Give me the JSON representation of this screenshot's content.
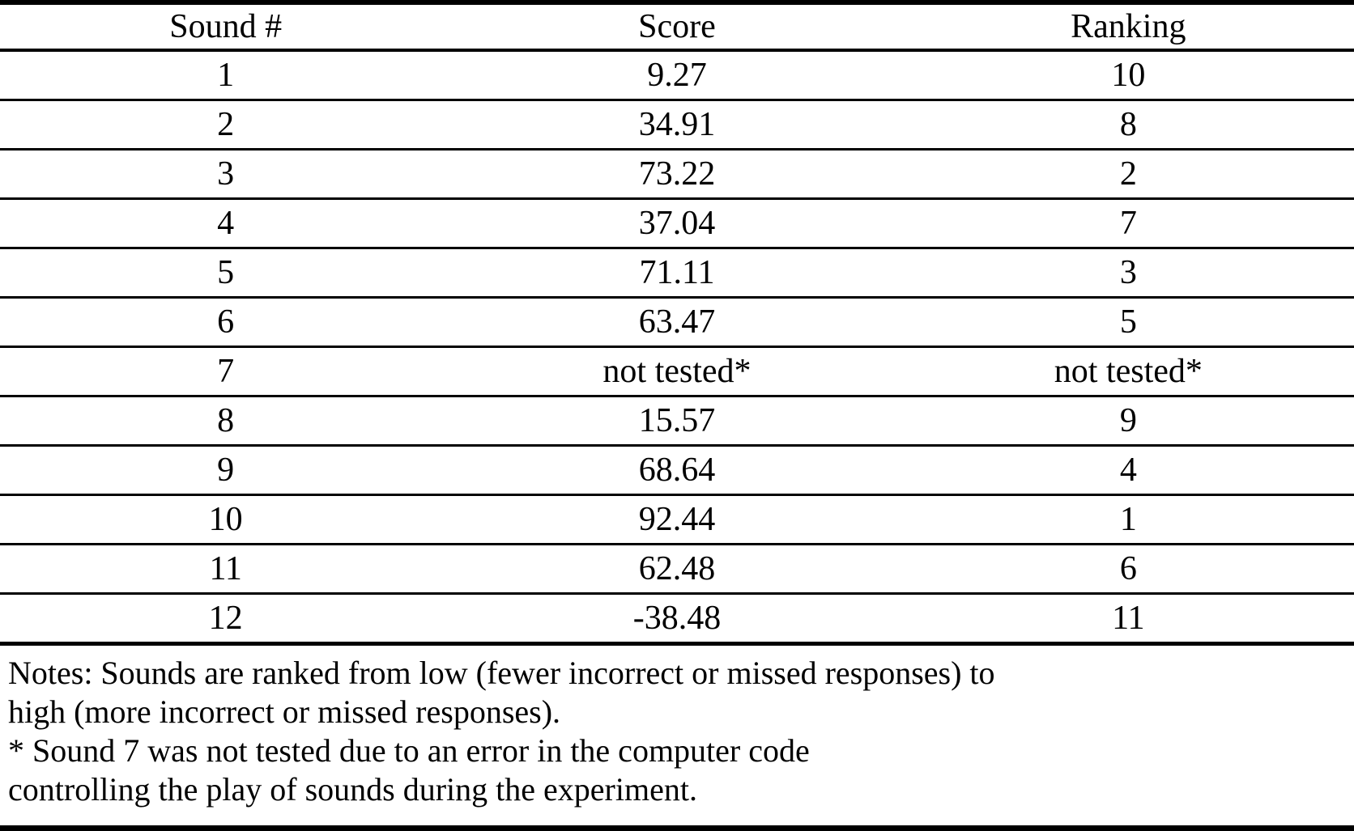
{
  "table": {
    "headers": {
      "sound": "Sound #",
      "score": "Score",
      "ranking": "Ranking"
    },
    "rows": [
      {
        "sound": "1",
        "score": "9.27",
        "ranking": "10",
        "ranking_bold": false
      },
      {
        "sound": "2",
        "score": "34.91",
        "ranking": "8",
        "ranking_bold": false
      },
      {
        "sound": "3",
        "score": "73.22",
        "ranking": "2",
        "ranking_bold": true
      },
      {
        "sound": "4",
        "score": "37.04",
        "ranking": "7",
        "ranking_bold": false
      },
      {
        "sound": "5",
        "score": "71.11",
        "ranking": "3",
        "ranking_bold": true
      },
      {
        "sound": "6",
        "score": "63.47",
        "ranking": "5",
        "ranking_bold": true
      },
      {
        "sound": "7",
        "score": "not tested*",
        "ranking": "not tested*",
        "ranking_bold": false
      },
      {
        "sound": "8",
        "score": "15.57",
        "ranking": "9",
        "ranking_bold": false
      },
      {
        "sound": "9",
        "score": "68.64",
        "ranking": "4",
        "ranking_bold": true
      },
      {
        "sound": "10",
        "score": "92.44",
        "ranking": "1",
        "ranking_bold": true
      },
      {
        "sound": "11",
        "score": "62.48",
        "ranking": "6",
        "ranking_bold": true
      },
      {
        "sound": "12",
        "score": "-38.48",
        "ranking": "11",
        "ranking_bold": false
      }
    ]
  },
  "notes": {
    "lines": [
      "Notes: Sounds are ranked from low (fewer incorrect or missed responses) to",
      "high (more incorrect or missed responses).",
      "* Sound 7 was not tested due to an error in the computer code",
      "controlling the play of sounds during the experiment."
    ]
  },
  "colors": {
    "text": "#000000",
    "background": "#ffffff",
    "rule": "#000000"
  }
}
